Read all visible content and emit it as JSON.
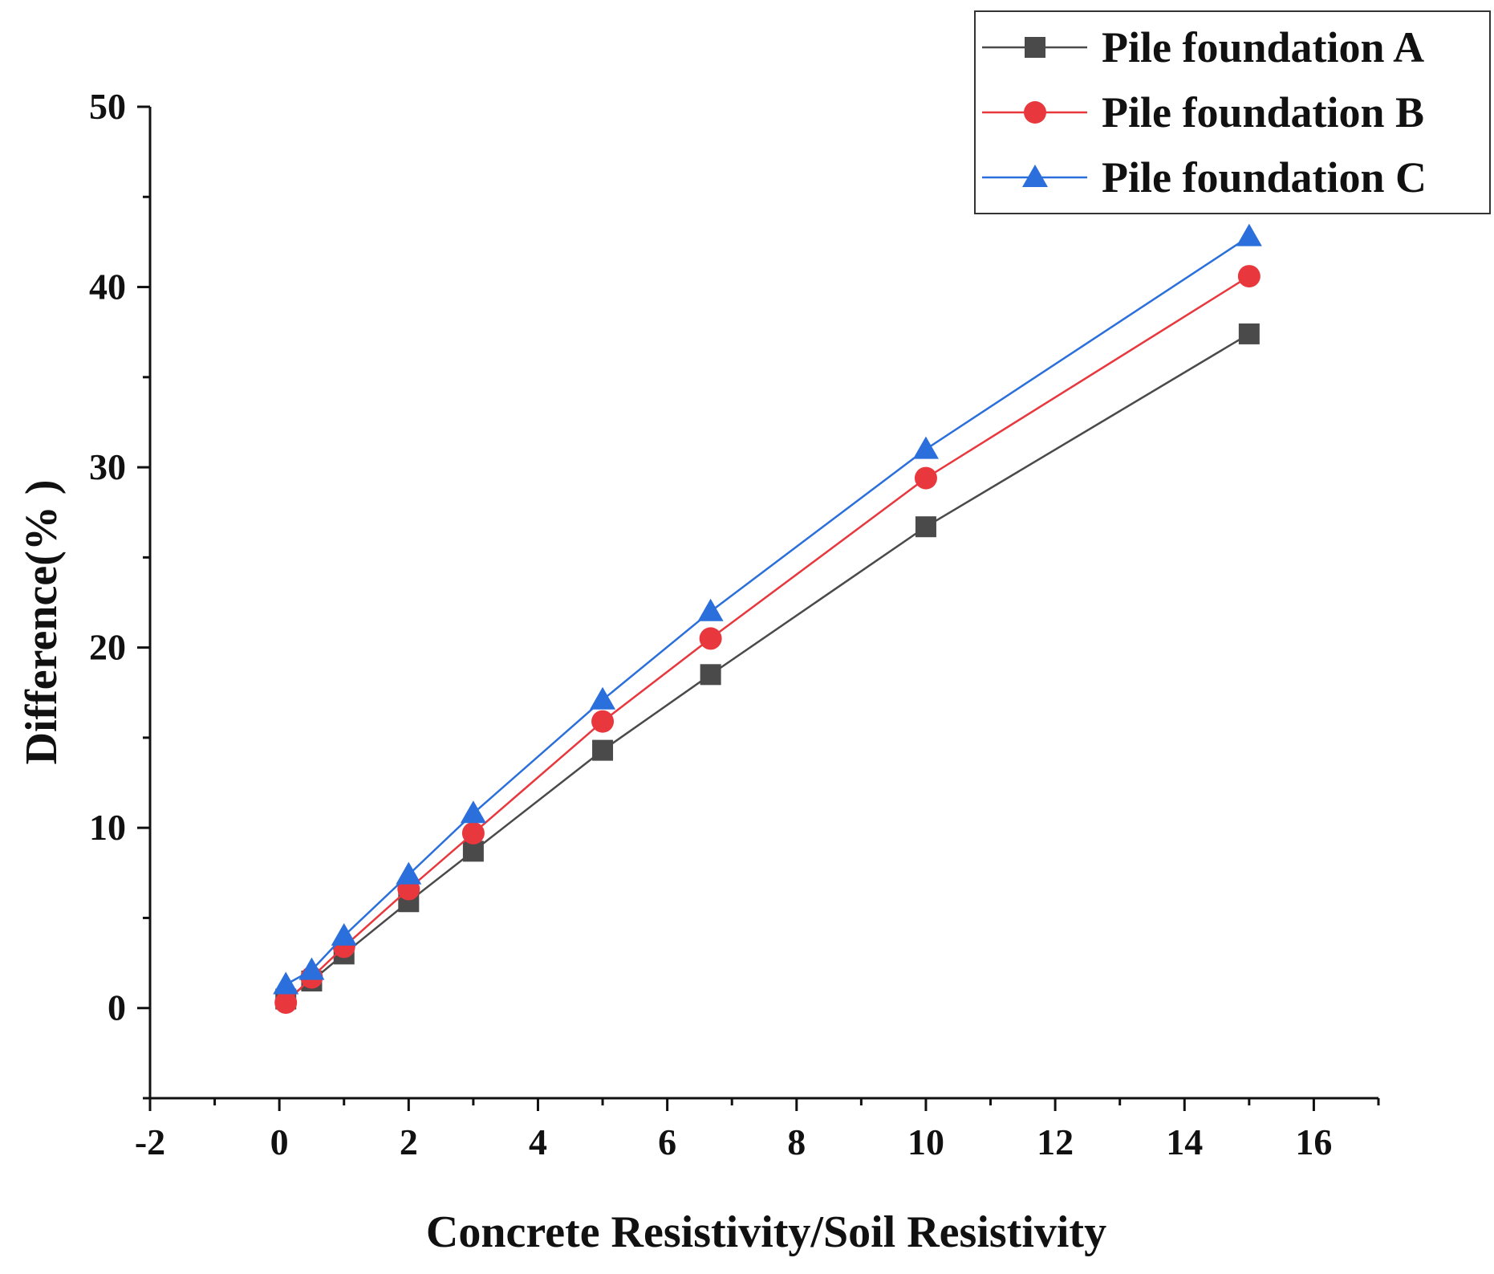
{
  "chart_data": {
    "type": "line",
    "title": "",
    "xlabel": "Concrete Resistivity/Soil Resistivity",
    "ylabel": "Difference(% )",
    "xlim": [
      -2,
      17
    ],
    "ylim": [
      -5,
      50
    ],
    "xticks": [
      -2,
      0,
      2,
      4,
      6,
      8,
      10,
      12,
      14,
      16
    ],
    "yticks": [
      0,
      10,
      20,
      30,
      40,
      50
    ],
    "legend_position": "top-right",
    "grid": false,
    "series": [
      {
        "name": "Pile foundation A",
        "marker": "square",
        "color": "#4a4a4a",
        "x": [
          0.1,
          0.5,
          1,
          2,
          3,
          5,
          6.67,
          10,
          15
        ],
        "y": [
          0.5,
          1.5,
          3.0,
          5.9,
          8.7,
          14.3,
          18.5,
          26.7,
          37.4
        ]
      },
      {
        "name": "Pile foundation B",
        "marker": "circle",
        "color": "#e8383d",
        "x": [
          0.1,
          0.5,
          1,
          2,
          3,
          5,
          6.67,
          10,
          15
        ],
        "y": [
          0.3,
          1.7,
          3.4,
          6.6,
          9.7,
          15.9,
          20.5,
          29.4,
          40.6
        ]
      },
      {
        "name": "Pile foundation C",
        "marker": "triangle",
        "color": "#2a6fdb",
        "x": [
          0.1,
          0.5,
          1,
          2,
          3,
          5,
          6.67,
          10,
          15
        ],
        "y": [
          1.3,
          2.1,
          4.0,
          7.4,
          10.8,
          17.1,
          22.0,
          31.0,
          42.8
        ]
      }
    ]
  }
}
